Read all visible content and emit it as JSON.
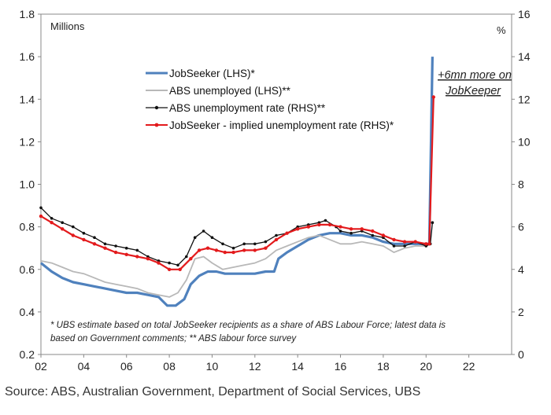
{
  "chart_data": {
    "type": "line",
    "ylabel_left": "Millions",
    "ylabel_right": "%",
    "ylim_left": [
      0.2,
      1.8
    ],
    "yticks_left": [
      "0.2",
      "0.4",
      "0.6",
      "0.8",
      "1.0",
      "1.2",
      "1.4",
      "1.6",
      "1.8"
    ],
    "ylim_right": [
      0,
      16
    ],
    "yticks_right": [
      "0",
      "2",
      "4",
      "6",
      "8",
      "10",
      "12",
      "14",
      "16"
    ],
    "xlim": [
      2002,
      2024
    ],
    "xticks": [
      {
        "value": 2002,
        "label": "02"
      },
      {
        "value": 2004,
        "label": "04"
      },
      {
        "value": 2006,
        "label": "06"
      },
      {
        "value": 2008,
        "label": "08"
      },
      {
        "value": 2010,
        "label": "10"
      },
      {
        "value": 2012,
        "label": "12"
      },
      {
        "value": 2014,
        "label": "14"
      },
      {
        "value": 2016,
        "label": "16"
      },
      {
        "value": 2018,
        "label": "18"
      },
      {
        "value": 2020,
        "label": "20"
      },
      {
        "value": 2022,
        "label": "22"
      }
    ],
    "grid": false,
    "legend_position": "top-left",
    "series": [
      {
        "name": "JobSeeker (LHS)*",
        "axis": "left",
        "color": "#4f81bd",
        "marker": "none",
        "points": [
          [
            2002.0,
            0.63
          ],
          [
            2002.5,
            0.59
          ],
          [
            2003.0,
            0.56
          ],
          [
            2003.5,
            0.54
          ],
          [
            2004.0,
            0.53
          ],
          [
            2004.5,
            0.52
          ],
          [
            2005.0,
            0.51
          ],
          [
            2005.5,
            0.5
          ],
          [
            2006.0,
            0.49
          ],
          [
            2006.5,
            0.49
          ],
          [
            2007.0,
            0.48
          ],
          [
            2007.5,
            0.47
          ],
          [
            2007.9,
            0.43
          ],
          [
            2008.3,
            0.43
          ],
          [
            2008.7,
            0.46
          ],
          [
            2009.0,
            0.53
          ],
          [
            2009.4,
            0.57
          ],
          [
            2009.8,
            0.59
          ],
          [
            2010.2,
            0.59
          ],
          [
            2010.6,
            0.58
          ],
          [
            2011.0,
            0.58
          ],
          [
            2011.5,
            0.58
          ],
          [
            2012.0,
            0.58
          ],
          [
            2012.5,
            0.59
          ],
          [
            2012.9,
            0.59
          ],
          [
            2013.1,
            0.65
          ],
          [
            2013.5,
            0.68
          ],
          [
            2014.0,
            0.71
          ],
          [
            2014.5,
            0.74
          ],
          [
            2015.0,
            0.76
          ],
          [
            2015.5,
            0.77
          ],
          [
            2016.0,
            0.77
          ],
          [
            2016.5,
            0.76
          ],
          [
            2017.0,
            0.76
          ],
          [
            2017.5,
            0.75
          ],
          [
            2018.0,
            0.73
          ],
          [
            2018.5,
            0.72
          ],
          [
            2019.0,
            0.72
          ],
          [
            2019.5,
            0.72
          ],
          [
            2020.0,
            0.72
          ],
          [
            2020.15,
            0.72
          ],
          [
            2020.3,
            1.6
          ]
        ]
      },
      {
        "name": "ABS unemployed (LHS)**",
        "axis": "left",
        "color": "#b8b8b8",
        "marker": "none",
        "points": [
          [
            2002.0,
            0.64
          ],
          [
            2002.5,
            0.63
          ],
          [
            2003.0,
            0.61
          ],
          [
            2003.5,
            0.59
          ],
          [
            2004.0,
            0.58
          ],
          [
            2004.5,
            0.56
          ],
          [
            2005.0,
            0.54
          ],
          [
            2005.5,
            0.53
          ],
          [
            2006.0,
            0.52
          ],
          [
            2006.5,
            0.51
          ],
          [
            2007.0,
            0.49
          ],
          [
            2007.5,
            0.48
          ],
          [
            2008.0,
            0.47
          ],
          [
            2008.4,
            0.49
          ],
          [
            2008.8,
            0.55
          ],
          [
            2009.2,
            0.65
          ],
          [
            2009.6,
            0.66
          ],
          [
            2010.0,
            0.63
          ],
          [
            2010.5,
            0.6
          ],
          [
            2011.0,
            0.61
          ],
          [
            2011.5,
            0.62
          ],
          [
            2012.0,
            0.63
          ],
          [
            2012.5,
            0.65
          ],
          [
            2013.0,
            0.69
          ],
          [
            2013.5,
            0.71
          ],
          [
            2014.0,
            0.73
          ],
          [
            2014.5,
            0.75
          ],
          [
            2015.0,
            0.76
          ],
          [
            2015.5,
            0.74
          ],
          [
            2016.0,
            0.72
          ],
          [
            2016.5,
            0.72
          ],
          [
            2017.0,
            0.73
          ],
          [
            2017.5,
            0.72
          ],
          [
            2018.0,
            0.71
          ],
          [
            2018.5,
            0.68
          ],
          [
            2019.0,
            0.7
          ],
          [
            2019.5,
            0.71
          ],
          [
            2020.0,
            0.71
          ],
          [
            2020.2,
            0.72
          ]
        ]
      },
      {
        "name": "ABS unemployment rate (RHS)**",
        "axis": "right",
        "color": "#111111",
        "marker": "dot",
        "points": [
          [
            2002.0,
            6.9
          ],
          [
            2002.5,
            6.4
          ],
          [
            2003.0,
            6.2
          ],
          [
            2003.5,
            6.0
          ],
          [
            2004.0,
            5.7
          ],
          [
            2004.5,
            5.5
          ],
          [
            2005.0,
            5.2
          ],
          [
            2005.5,
            5.1
          ],
          [
            2006.0,
            5.0
          ],
          [
            2006.5,
            4.9
          ],
          [
            2007.0,
            4.6
          ],
          [
            2007.5,
            4.4
          ],
          [
            2008.0,
            4.3
          ],
          [
            2008.4,
            4.2
          ],
          [
            2008.8,
            4.6
          ],
          [
            2009.2,
            5.5
          ],
          [
            2009.6,
            5.8
          ],
          [
            2010.0,
            5.5
          ],
          [
            2010.5,
            5.2
          ],
          [
            2011.0,
            5.0
          ],
          [
            2011.5,
            5.2
          ],
          [
            2012.0,
            5.2
          ],
          [
            2012.5,
            5.3
          ],
          [
            2013.0,
            5.6
          ],
          [
            2013.5,
            5.7
          ],
          [
            2014.0,
            6.0
          ],
          [
            2014.5,
            6.1
          ],
          [
            2015.0,
            6.2
          ],
          [
            2015.3,
            6.3
          ],
          [
            2015.8,
            6.0
          ],
          [
            2016.0,
            5.8
          ],
          [
            2016.5,
            5.7
          ],
          [
            2017.0,
            5.8
          ],
          [
            2017.5,
            5.6
          ],
          [
            2018.0,
            5.5
          ],
          [
            2018.5,
            5.1
          ],
          [
            2019.0,
            5.1
          ],
          [
            2019.5,
            5.3
          ],
          [
            2020.0,
            5.1
          ],
          [
            2020.2,
            5.2
          ],
          [
            2020.3,
            6.2
          ]
        ]
      },
      {
        "name": "JobSeeker - implied unemployment rate (RHS)*",
        "axis": "right",
        "color": "#e31a1c",
        "marker": "dot",
        "points": [
          [
            2002.0,
            6.5
          ],
          [
            2002.5,
            6.2
          ],
          [
            2003.0,
            5.9
          ],
          [
            2003.5,
            5.6
          ],
          [
            2004.0,
            5.4
          ],
          [
            2004.5,
            5.2
          ],
          [
            2005.0,
            5.0
          ],
          [
            2005.5,
            4.8
          ],
          [
            2006.0,
            4.7
          ],
          [
            2006.5,
            4.6
          ],
          [
            2007.0,
            4.5
          ],
          [
            2007.5,
            4.3
          ],
          [
            2008.0,
            4.0
          ],
          [
            2008.5,
            4.0
          ],
          [
            2009.0,
            4.5
          ],
          [
            2009.4,
            4.9
          ],
          [
            2009.8,
            5.0
          ],
          [
            2010.2,
            4.9
          ],
          [
            2010.6,
            4.8
          ],
          [
            2011.0,
            4.8
          ],
          [
            2011.5,
            4.9
          ],
          [
            2012.0,
            4.9
          ],
          [
            2012.5,
            5.0
          ],
          [
            2013.0,
            5.4
          ],
          [
            2013.5,
            5.7
          ],
          [
            2014.0,
            5.9
          ],
          [
            2014.5,
            6.0
          ],
          [
            2015.0,
            6.1
          ],
          [
            2015.5,
            6.1
          ],
          [
            2016.0,
            6.0
          ],
          [
            2016.5,
            5.9
          ],
          [
            2017.0,
            5.9
          ],
          [
            2017.5,
            5.8
          ],
          [
            2018.0,
            5.6
          ],
          [
            2018.5,
            5.4
          ],
          [
            2019.0,
            5.3
          ],
          [
            2019.5,
            5.3
          ],
          [
            2020.0,
            5.2
          ],
          [
            2020.15,
            5.2
          ],
          [
            2020.35,
            12.1
          ]
        ]
      }
    ],
    "annotations": [
      "+6mn more on",
      "JobKeeper"
    ],
    "footnotes": [
      "* UBS estimate based on total JobSeeker recipients as a share of ABS Labour Force; latest data is",
      "based on Government comments; ** ABS labour force survey"
    ]
  },
  "source_text": "Source:  ABS, Australian Government, Department of Social Services, UBS"
}
